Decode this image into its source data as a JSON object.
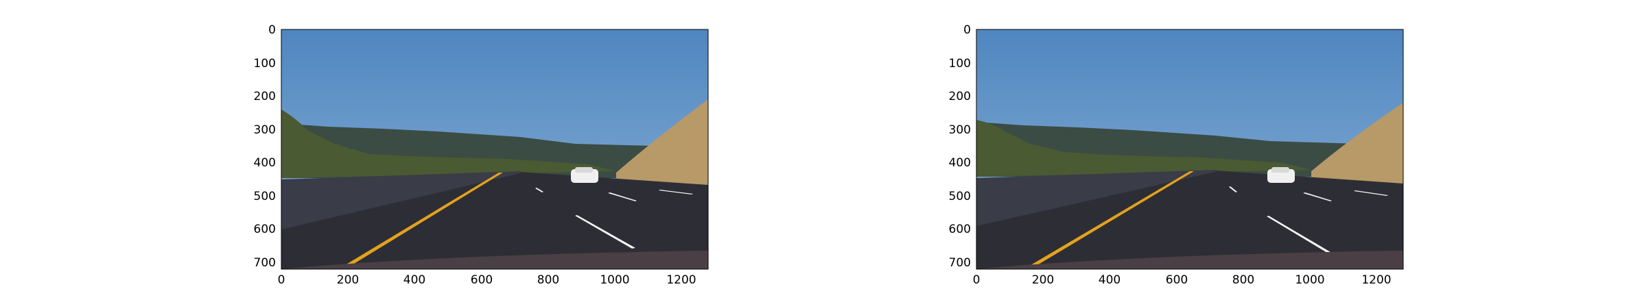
{
  "figure": {
    "panels": [
      {
        "id": "left",
        "y_ticks": [
          "0",
          "100",
          "200",
          "300",
          "400",
          "500",
          "600",
          "700"
        ],
        "x_ticks": [
          "0",
          "200",
          "400",
          "600",
          "800",
          "1000",
          "1200"
        ]
      },
      {
        "id": "right",
        "y_ticks": [
          "0",
          "100",
          "200",
          "300",
          "400",
          "500",
          "600",
          "700"
        ],
        "x_ticks": [
          "0",
          "200",
          "400",
          "600",
          "800",
          "1000",
          "1200"
        ]
      }
    ],
    "colors": {
      "sky_top": "#5a8fc4",
      "sky_bottom": "#8eb3d8",
      "hills": "#3b4c45",
      "trees": "#4a5a32",
      "dry_hill": "#b89968",
      "road": "#2d2e35",
      "barrier": "#3a3c48",
      "yellow_line": "#e3a21e",
      "white_line": "#f2f2f2"
    }
  }
}
